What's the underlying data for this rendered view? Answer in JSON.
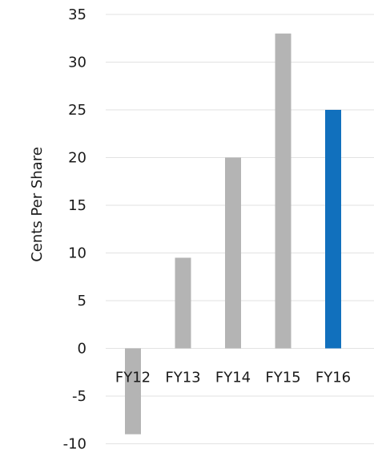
{
  "chart_data": {
    "type": "bar",
    "title": "",
    "xlabel": "",
    "ylabel": "Cents Per Share",
    "ylim": [
      -10,
      35
    ],
    "yticks": [
      35,
      30,
      25,
      20,
      15,
      10,
      5,
      0,
      -5,
      -10
    ],
    "grid": true,
    "categories": [
      "FY12",
      "FY13",
      "FY14",
      "FY15",
      "FY16"
    ],
    "values": [
      -9,
      9.5,
      20,
      33,
      25
    ],
    "colors": {
      "default": "#b4b4b4",
      "highlight": "#1170bd",
      "gridline": "#e2e2e2"
    },
    "highlight_category": "FY16"
  }
}
